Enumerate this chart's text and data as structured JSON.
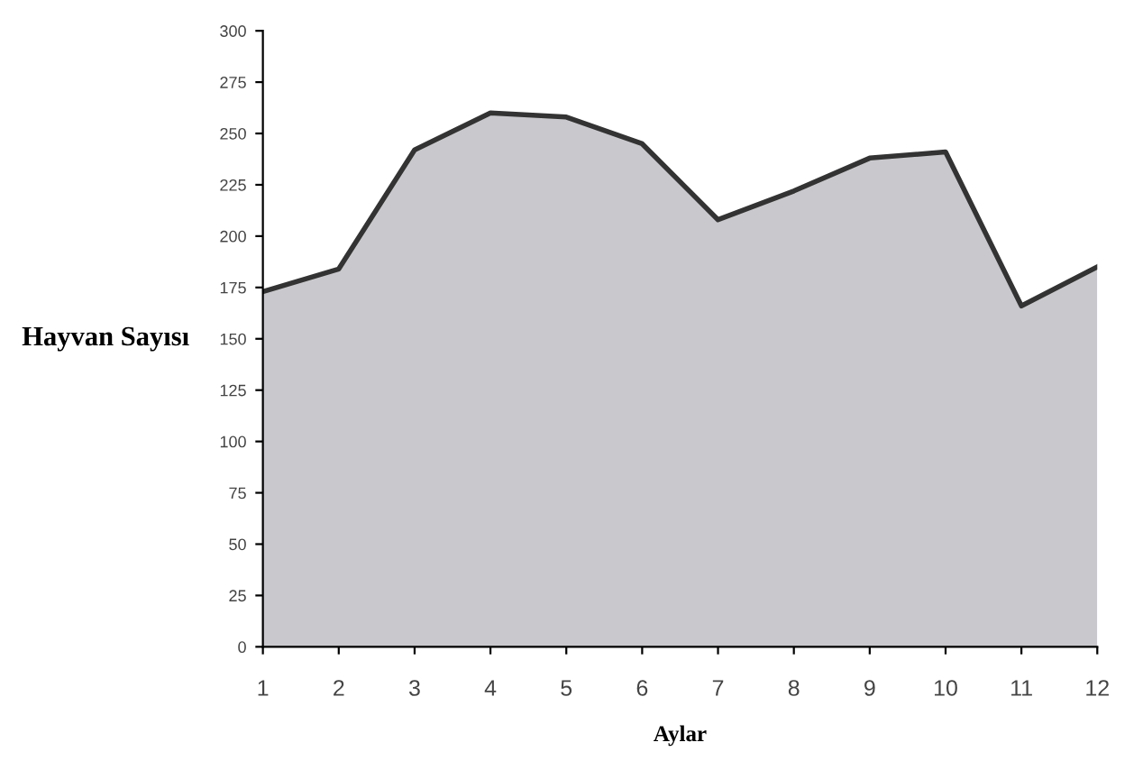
{
  "chart_data": {
    "type": "area",
    "xlabel": "Aylar",
    "ylabel": "Hayvan Sayısı",
    "x": [
      1,
      2,
      3,
      4,
      5,
      6,
      7,
      8,
      9,
      10,
      11,
      12
    ],
    "series": [
      {
        "color": "#c9c9cd",
        "values": [
          173,
          184,
          242,
          260,
          258,
          245,
          208,
          222,
          238,
          241,
          166,
          185
        ]
      }
    ],
    "xlim": [
      1,
      12
    ],
    "xticks": [
      1,
      2,
      3,
      4,
      5,
      6,
      7,
      8,
      9,
      10,
      11,
      12
    ],
    "ylim": [
      0,
      300
    ],
    "yticks": [
      0,
      25,
      50,
      75,
      100,
      125,
      150,
      175,
      200,
      225,
      250,
      275,
      300
    ],
    "grid": false,
    "legend": false
  }
}
